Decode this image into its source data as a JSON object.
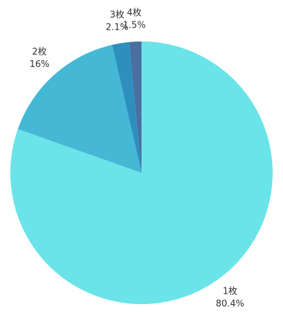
{
  "chart_data": {
    "type": "pie",
    "categories": [
      "1枚",
      "2枚",
      "3枚",
      "4枚"
    ],
    "values": [
      80.4,
      16,
      2.1,
      1.5
    ],
    "value_labels": [
      "80.4%",
      "16%",
      "2.1%",
      "1.5%"
    ],
    "colors": [
      "#6ae4e8",
      "#45b8d6",
      "#2e8fbf",
      "#4a6fa0"
    ]
  }
}
